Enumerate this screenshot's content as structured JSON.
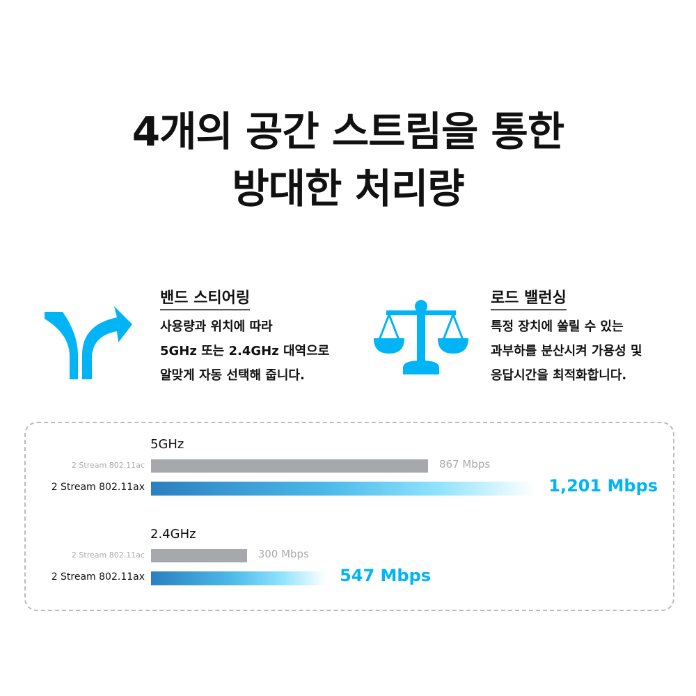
{
  "title": {
    "line1": "4개의 공간 스트림을 통한",
    "line2": "방대한 처리량"
  },
  "features": [
    {
      "icon": "split-arrow-icon",
      "heading": "밴드 스티어링",
      "lines": [
        "사용량과 위치에 따라",
        "5GHz 또는 2.4GHz 대역으로",
        "알맞게 자동 선택해 줍니다."
      ]
    },
    {
      "icon": "balance-scale-icon",
      "heading": "로드 밸런싱",
      "lines": [
        "특정 장치에 쏠릴 수 있는",
        "과부하를 분산시켜 가용성 및",
        "응답시간을 최적화합니다."
      ]
    }
  ],
  "colors": {
    "accent": "#00b4f5",
    "bar_gray": "#a7a8ac",
    "gradient_start": "#2b7fc0",
    "gradient_mid": "#4bb8e8",
    "gradient_end": "#8fe3ff"
  },
  "chart_data": {
    "type": "bar",
    "orientation": "horizontal",
    "unit": "Mbps",
    "groups": [
      {
        "band": "5GHz",
        "bars": [
          {
            "label": "2 Stream 802.11ac",
            "value": 867,
            "value_label": "867 Mbps"
          },
          {
            "label": "2 Stream 802.11ax",
            "value": 1201,
            "value_label": "1,201 Mbps"
          }
        ]
      },
      {
        "band": "2.4GHz",
        "bars": [
          {
            "label": "2 Stream 802.11ac",
            "value": 300,
            "value_label": "300 Mbps"
          },
          {
            "label": "2 Stream 802.11ax",
            "value": 547,
            "value_label": "547 Mbps"
          }
        ]
      }
    ]
  }
}
